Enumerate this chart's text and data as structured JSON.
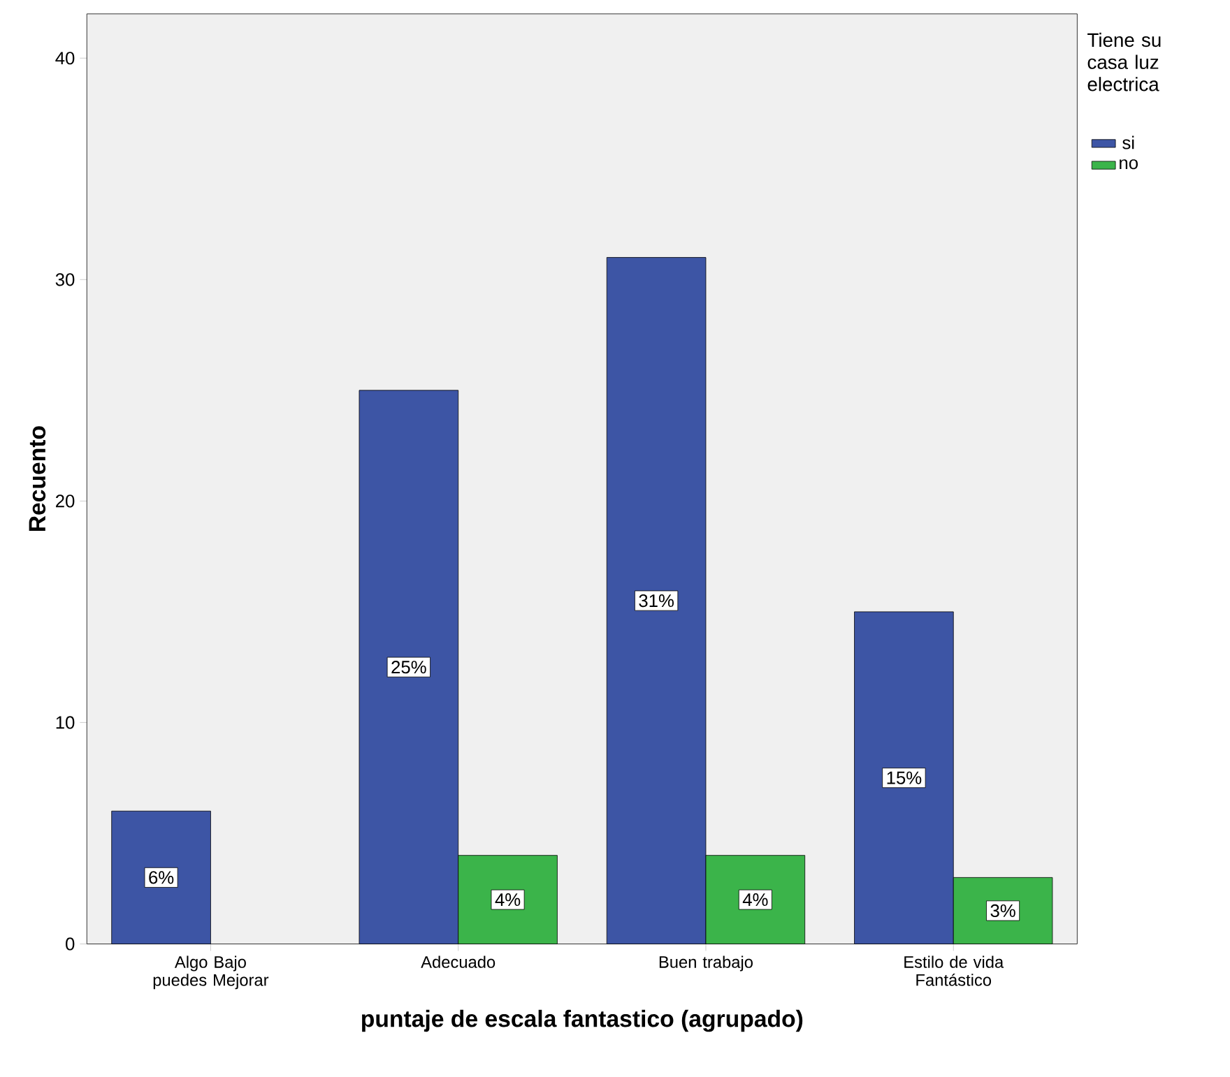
{
  "chart_data": {
    "type": "bar",
    "xlabel": "puntaje de escala fantastico (agrupado)",
    "ylabel": "Recuento",
    "legend_title": "Tiene su casa luz electrica",
    "categories": [
      "Algo Bajo puedes Mejorar",
      "Adecuado",
      "Buen trabajo",
      "Estilo de vida Fantástico"
    ],
    "series": [
      {
        "name": "si",
        "color": "#3d55a5",
        "values": [
          6,
          25,
          31,
          15
        ],
        "value_labels": [
          "6%",
          "25%",
          "31%",
          "15%"
        ]
      },
      {
        "name": "no",
        "color": "#3bb44a",
        "values": [
          null,
          4,
          4,
          3
        ],
        "value_labels": [
          null,
          "4%",
          "4%",
          "3%"
        ]
      }
    ],
    "ylim": [
      0,
      42
    ],
    "yticks": [
      0,
      10,
      20,
      30,
      40
    ],
    "grid": false,
    "legend": "top right"
  }
}
